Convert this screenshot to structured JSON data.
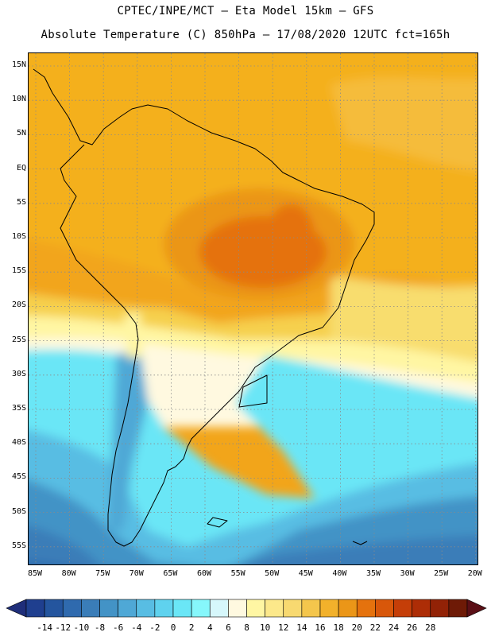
{
  "header": {
    "line1": "CPTEC/INPE/MCT –  Eta Model 15km – GFS",
    "line2": "Absolute Temperature (C) 850hPa – 17/08/2020 12UTC fct=165h"
  },
  "map": {
    "region": "South America",
    "lat_labels": [
      "15N",
      "10N",
      "5N",
      "EQ",
      "5S",
      "10S",
      "15S",
      "20S",
      "25S",
      "30S",
      "35S",
      "40S",
      "45S",
      "50S",
      "55S"
    ],
    "lon_labels": [
      "85W",
      "80W",
      "75W",
      "70W",
      "65W",
      "60W",
      "55W",
      "50W",
      "45W",
      "40W",
      "35W",
      "30W",
      "25W",
      "20W"
    ]
  },
  "colorbar": {
    "labels": [
      "-14",
      "-12",
      "-10",
      "-8",
      "-6",
      "-4",
      "-2",
      "0",
      "2",
      "4",
      "6",
      "8",
      "10",
      "12",
      "14",
      "16",
      "18",
      "20",
      "22",
      "24",
      "26",
      "28"
    ],
    "colors": [
      "#1f3f8f",
      "#24559e",
      "#2f6aae",
      "#3a7db8",
      "#4393c6",
      "#4fa8d6",
      "#58bde3",
      "#5fd2ee",
      "#6ae6f6",
      "#86f7fb",
      "#d6f7fb",
      "#fff9e0",
      "#fff6a3",
      "#fce88a",
      "#f8d970",
      "#f4c64c",
      "#f2b12b",
      "#eb9618",
      "#e5720d",
      "#d8570a",
      "#c53e08",
      "#ad2d06",
      "#922206",
      "#6e1a06"
    ],
    "left_arrow_color": "#1f2e7a",
    "right_arrow_color": "#5a0f16"
  }
}
